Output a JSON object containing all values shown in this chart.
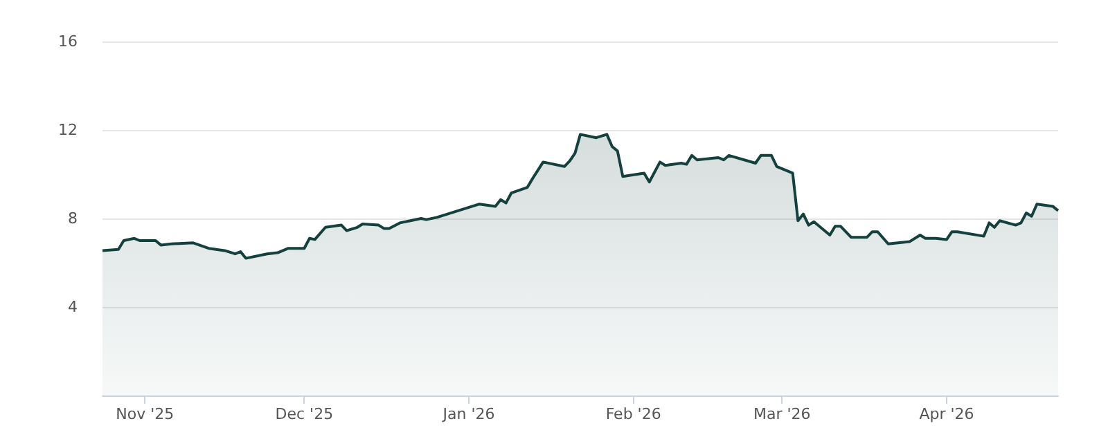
{
  "chart_data": {
    "type": "area",
    "x": [
      "2025-10-24",
      "2025-10-27",
      "2025-10-28",
      "2025-10-30",
      "2025-10-31",
      "2025-11-03",
      "2025-11-04",
      "2025-11-06",
      "2025-11-10",
      "2025-11-13",
      "2025-11-16",
      "2025-11-18",
      "2025-11-19",
      "2025-11-20",
      "2025-11-24",
      "2025-11-26",
      "2025-11-28",
      "2025-12-01",
      "2025-12-02",
      "2025-12-03",
      "2025-12-05",
      "2025-12-08",
      "2025-12-09",
      "2025-12-11",
      "2025-12-12",
      "2025-12-15",
      "2025-12-16",
      "2025-12-17",
      "2025-12-19",
      "2025-12-21",
      "2025-12-23",
      "2025-12-24",
      "2025-12-26",
      "2026-01-03",
      "2026-01-06",
      "2026-01-07",
      "2026-01-08",
      "2026-01-09",
      "2026-01-12",
      "2026-01-13",
      "2026-01-15",
      "2026-01-19",
      "2026-01-20",
      "2026-01-21",
      "2026-01-22",
      "2026-01-25",
      "2026-01-27",
      "2026-01-28",
      "2026-01-29",
      "2026-01-30",
      "2026-02-03",
      "2026-02-04",
      "2026-02-05",
      "2026-02-06",
      "2026-02-07",
      "2026-02-10",
      "2026-02-11",
      "2026-02-12",
      "2026-02-13",
      "2026-02-17",
      "2026-02-18",
      "2026-02-19",
      "2026-02-24",
      "2026-02-25",
      "2026-02-27",
      "2026-02-28",
      "2026-03-03",
      "2026-03-04",
      "2026-03-05",
      "2026-03-06",
      "2026-03-07",
      "2026-03-10",
      "2026-03-11",
      "2026-03-12",
      "2026-03-14",
      "2026-03-17",
      "2026-03-18",
      "2026-03-19",
      "2026-03-21",
      "2026-03-25",
      "2026-03-27",
      "2026-03-28",
      "2026-03-30",
      "2026-04-01",
      "2026-04-02",
      "2026-04-03",
      "2026-04-08",
      "2026-04-09",
      "2026-04-10",
      "2026-04-11",
      "2026-04-14",
      "2026-04-15",
      "2026-04-16",
      "2026-04-17",
      "2026-04-18",
      "2026-04-21",
      "2026-04-22"
    ],
    "series": [
      {
        "color": "#14403d",
        "values": [
          6.55,
          6.6,
          7.0,
          7.1,
          7.0,
          7.0,
          6.8,
          6.85,
          6.9,
          6.65,
          6.55,
          6.4,
          6.5,
          6.2,
          6.4,
          6.45,
          6.65,
          6.65,
          7.1,
          7.05,
          7.6,
          7.7,
          7.45,
          7.6,
          7.75,
          7.7,
          7.55,
          7.55,
          7.8,
          7.9,
          8.0,
          7.95,
          8.05,
          8.65,
          8.55,
          8.85,
          8.7,
          9.15,
          9.4,
          9.8,
          10.55,
          10.35,
          10.6,
          10.95,
          11.8,
          11.65,
          11.8,
          11.25,
          11.05,
          9.9,
          10.05,
          9.65,
          10.1,
          10.55,
          10.4,
          10.5,
          10.45,
          10.85,
          10.65,
          10.75,
          10.65,
          10.85,
          10.5,
          10.85,
          10.85,
          10.35,
          10.05,
          7.9,
          8.2,
          7.7,
          7.85,
          7.25,
          7.65,
          7.65,
          7.15,
          7.15,
          7.4,
          7.4,
          6.85,
          6.95,
          7.25,
          7.1,
          7.1,
          7.05,
          7.4,
          7.4,
          7.2,
          7.8,
          7.6,
          7.9,
          7.7,
          7.8,
          8.25,
          8.1,
          8.65,
          8.55,
          8.35
        ]
      }
    ],
    "xlim": [
      "2025-10-24",
      "2026-04-22"
    ],
    "xticks": [
      {
        "value": "2025-11-01",
        "label": "Nov '25"
      },
      {
        "value": "2025-12-01",
        "label": "Dec '25"
      },
      {
        "value": "2026-01-01",
        "label": "Jan '26"
      },
      {
        "value": "2026-02-01",
        "label": "Feb '26"
      },
      {
        "value": "2026-03-01",
        "label": "Mar '26"
      },
      {
        "value": "2026-04-01",
        "label": "Apr '26"
      }
    ],
    "ylim": [
      0,
      16
    ],
    "yticks": [
      {
        "value": 0,
        "label": null
      },
      4,
      8,
      12,
      16
    ],
    "grid": "y",
    "marker": "none",
    "line_style": "solid"
  }
}
